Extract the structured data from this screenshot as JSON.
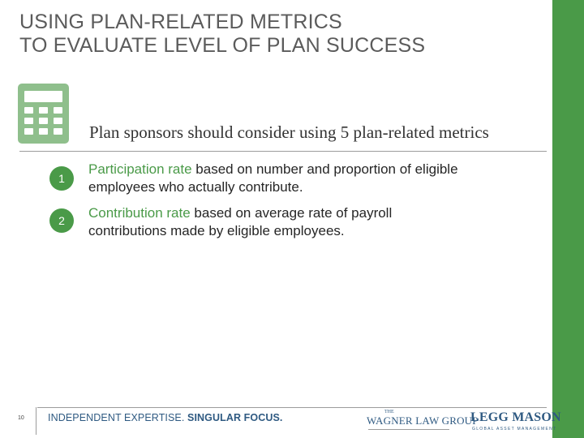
{
  "slide": {
    "title_lines": [
      "USING PLAN-RELATED METRICS",
      "TO EVALUATE LEVEL OF PLAN SUCCESS"
    ],
    "intro": "Plan sponsors should consider using 5 plan-related metrics",
    "icon": "calculator-icon"
  },
  "metrics": [
    {
      "number": "1",
      "highlight": "Participation rate",
      "text": " based on number and proportion of eligible employees who actually contribute."
    },
    {
      "number": "2",
      "highlight": "Contribution rate",
      "text": " based on average rate of payroll contributions made by eligible employees."
    }
  ],
  "footer": {
    "page_number": "10",
    "tagline_regular": "INDEPENDENT EXPERTISE.",
    "tagline_bold": " SINGULAR FOCUS.",
    "logo_wagner_small": "THE",
    "logo_wagner_main": "WAGNER LAW GROUP",
    "logo_legg_main": "LEGG MASON",
    "logo_legg_sub": "GLOBAL ASSET MANAGEMENT"
  },
  "colors": {
    "accent_green": "#4a9a48",
    "title_gray": "#5b5b5b",
    "brand_blue": "#2f5a82"
  }
}
